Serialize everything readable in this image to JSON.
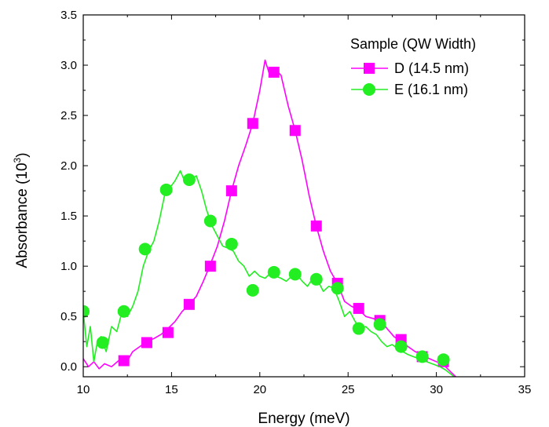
{
  "chart_data": {
    "type": "line",
    "title": "",
    "xlabel": "Energy (meV)",
    "ylabel_base": "Absorbance (10",
    "ylabel_sup": "3",
    "ylabel_close": ")",
    "xlim": [
      10,
      35
    ],
    "ylim": [
      -0.1,
      3.5
    ],
    "xticks": [
      "10",
      "15",
      "20",
      "25",
      "30",
      "35"
    ],
    "yticks": [
      "0.0",
      "0.5",
      "1.0",
      "1.5",
      "2.0",
      "2.5",
      "3.0",
      "3.5"
    ],
    "legend": {
      "title": "Sample (QW Width)",
      "placement": "top-right"
    },
    "series": [
      {
        "name": "D (14.5 nm)",
        "color": "#ff00ff",
        "marker": "square",
        "line": [
          [
            10.0,
            0.08
          ],
          [
            10.3,
            0.0
          ],
          [
            10.6,
            0.05
          ],
          [
            10.9,
            -0.02
          ],
          [
            11.2,
            0.03
          ],
          [
            11.6,
            0.0
          ],
          [
            12.0,
            0.06
          ],
          [
            12.4,
            0.03
          ],
          [
            12.8,
            0.15
          ],
          [
            13.2,
            0.2
          ],
          [
            13.6,
            0.25
          ],
          [
            14.0,
            0.28
          ],
          [
            14.4,
            0.32
          ],
          [
            14.8,
            0.38
          ],
          [
            15.2,
            0.45
          ],
          [
            15.6,
            0.55
          ],
          [
            16.0,
            0.62
          ],
          [
            16.4,
            0.7
          ],
          [
            16.8,
            0.85
          ],
          [
            17.2,
            1.02
          ],
          [
            17.6,
            1.2
          ],
          [
            18.0,
            1.45
          ],
          [
            18.4,
            1.75
          ],
          [
            18.8,
            2.0
          ],
          [
            19.2,
            2.2
          ],
          [
            19.6,
            2.42
          ],
          [
            20.0,
            2.75
          ],
          [
            20.3,
            3.05
          ],
          [
            20.6,
            2.88
          ],
          [
            20.9,
            2.95
          ],
          [
            21.2,
            2.9
          ],
          [
            21.6,
            2.6
          ],
          [
            22.0,
            2.35
          ],
          [
            22.4,
            2.05
          ],
          [
            22.8,
            1.7
          ],
          [
            23.2,
            1.4
          ],
          [
            23.6,
            1.15
          ],
          [
            24.0,
            0.95
          ],
          [
            24.4,
            0.83
          ],
          [
            24.8,
            0.65
          ],
          [
            25.2,
            0.6
          ],
          [
            25.6,
            0.57
          ],
          [
            26.0,
            0.5
          ],
          [
            26.4,
            0.48
          ],
          [
            26.8,
            0.46
          ],
          [
            27.2,
            0.38
          ],
          [
            27.6,
            0.3
          ],
          [
            28.0,
            0.25
          ],
          [
            28.4,
            0.2
          ],
          [
            28.8,
            0.15
          ],
          [
            29.2,
            0.12
          ],
          [
            29.6,
            0.08
          ],
          [
            30.0,
            0.05
          ],
          [
            30.4,
            0.02
          ],
          [
            30.8,
            -0.05
          ],
          [
            31.1,
            -0.1
          ]
        ],
        "markers": [
          [
            12.3,
            0.06
          ],
          [
            13.6,
            0.24
          ],
          [
            14.8,
            0.34
          ],
          [
            16.0,
            0.62
          ],
          [
            17.2,
            1.0
          ],
          [
            18.4,
            1.75
          ],
          [
            19.6,
            2.42
          ],
          [
            20.8,
            2.93
          ],
          [
            22.0,
            2.35
          ],
          [
            23.2,
            1.4
          ],
          [
            24.4,
            0.83
          ],
          [
            25.6,
            0.58
          ],
          [
            26.8,
            0.46
          ],
          [
            28.0,
            0.27
          ],
          [
            29.2,
            0.1
          ],
          [
            30.4,
            0.05
          ]
        ]
      },
      {
        "name": "E (16.1 nm)",
        "color": "#22ee22",
        "marker": "circle",
        "line": [
          [
            10.0,
            0.55
          ],
          [
            10.2,
            0.2
          ],
          [
            10.4,
            0.4
          ],
          [
            10.6,
            0.05
          ],
          [
            10.8,
            0.25
          ],
          [
            11.0,
            0.3
          ],
          [
            11.3,
            0.15
          ],
          [
            11.6,
            0.4
          ],
          [
            11.9,
            0.35
          ],
          [
            12.2,
            0.55
          ],
          [
            12.5,
            0.5
          ],
          [
            12.8,
            0.6
          ],
          [
            13.1,
            0.75
          ],
          [
            13.4,
            1.0
          ],
          [
            13.7,
            1.15
          ],
          [
            14.0,
            1.25
          ],
          [
            14.3,
            1.45
          ],
          [
            14.6,
            1.7
          ],
          [
            14.9,
            1.78
          ],
          [
            15.2,
            1.85
          ],
          [
            15.5,
            1.95
          ],
          [
            15.8,
            1.82
          ],
          [
            16.1,
            1.85
          ],
          [
            16.4,
            1.9
          ],
          [
            16.7,
            1.75
          ],
          [
            17.0,
            1.55
          ],
          [
            17.3,
            1.4
          ],
          [
            17.6,
            1.3
          ],
          [
            17.9,
            1.2
          ],
          [
            18.2,
            1.18
          ],
          [
            18.5,
            1.15
          ],
          [
            18.8,
            1.05
          ],
          [
            19.1,
            1.0
          ],
          [
            19.4,
            0.9
          ],
          [
            19.7,
            0.95
          ],
          [
            20.0,
            0.9
          ],
          [
            20.3,
            0.88
          ],
          [
            20.6,
            0.93
          ],
          [
            20.9,
            0.9
          ],
          [
            21.2,
            0.88
          ],
          [
            21.5,
            0.85
          ],
          [
            21.8,
            0.9
          ],
          [
            22.1,
            0.92
          ],
          [
            22.4,
            0.85
          ],
          [
            22.7,
            0.8
          ],
          [
            23.0,
            0.88
          ],
          [
            23.3,
            0.85
          ],
          [
            23.6,
            0.75
          ],
          [
            23.9,
            0.8
          ],
          [
            24.2,
            0.78
          ],
          [
            24.5,
            0.65
          ],
          [
            24.8,
            0.5
          ],
          [
            25.1,
            0.55
          ],
          [
            25.4,
            0.45
          ],
          [
            25.7,
            0.38
          ],
          [
            26.0,
            0.4
          ],
          [
            26.3,
            0.35
          ],
          [
            26.6,
            0.32
          ],
          [
            26.9,
            0.25
          ],
          [
            27.2,
            0.2
          ],
          [
            27.5,
            0.22
          ],
          [
            27.8,
            0.18
          ],
          [
            28.1,
            0.15
          ],
          [
            28.4,
            0.12
          ],
          [
            28.7,
            0.1
          ],
          [
            29.0,
            0.08
          ],
          [
            29.3,
            0.06
          ],
          [
            29.6,
            0.04
          ],
          [
            29.9,
            0.02
          ],
          [
            30.2,
            0.0
          ],
          [
            30.5,
            -0.03
          ],
          [
            30.8,
            -0.07
          ],
          [
            31.0,
            -0.1
          ]
        ],
        "markers": [
          [
            10.0,
            0.55
          ],
          [
            11.1,
            0.24
          ],
          [
            12.3,
            0.55
          ],
          [
            13.5,
            1.17
          ],
          [
            14.7,
            1.76
          ],
          [
            16.0,
            1.86
          ],
          [
            17.2,
            1.45
          ],
          [
            18.4,
            1.22
          ],
          [
            19.6,
            0.76
          ],
          [
            20.8,
            0.94
          ],
          [
            22.0,
            0.92
          ],
          [
            23.2,
            0.87
          ],
          [
            24.4,
            0.78
          ],
          [
            25.6,
            0.38
          ],
          [
            26.8,
            0.42
          ],
          [
            28.0,
            0.2
          ],
          [
            29.2,
            0.1
          ],
          [
            30.4,
            0.07
          ]
        ]
      }
    ]
  }
}
